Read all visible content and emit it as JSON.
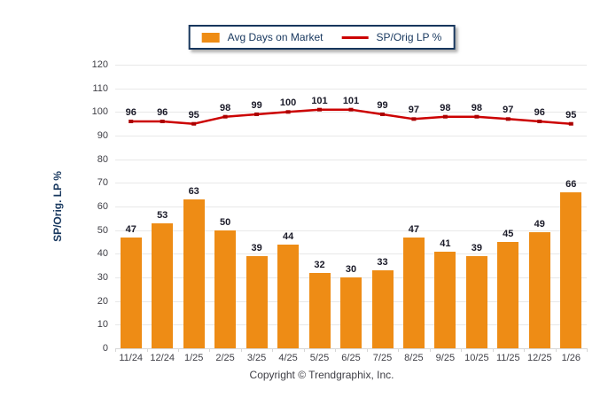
{
  "chart_data": {
    "type": "bar",
    "combo": "bar+line",
    "title": "",
    "categories": [
      "11/24",
      "12/24",
      "1/25",
      "2/25",
      "3/25",
      "4/25",
      "5/25",
      "6/25",
      "7/25",
      "8/25",
      "9/25",
      "10/25",
      "11/25",
      "12/25",
      "1/26"
    ],
    "series": [
      {
        "name": "Avg Days on Market",
        "type": "bar",
        "color": "#EE8C15",
        "values": [
          47,
          53,
          63,
          50,
          39,
          44,
          32,
          30,
          33,
          47,
          41,
          39,
          45,
          49,
          66
        ]
      },
      {
        "name": "SP/Orig LP %",
        "type": "line",
        "color": "#CC0000",
        "marker_color": "#AA0000",
        "values": [
          96,
          96,
          95,
          98,
          99,
          100,
          101,
          101,
          99,
          97,
          98,
          98,
          97,
          96,
          95
        ]
      }
    ],
    "xlabel": "",
    "ylabel": "SP/Orig. LP %",
    "ylim": [
      0,
      120
    ],
    "ytick_step": 10,
    "grid": true,
    "data_labels": true,
    "legend_position": "top-center"
  },
  "footer": {
    "copyright": "Copyright © Trendgraphix, Inc."
  },
  "colors": {
    "background": "#FFFFFF",
    "legend_border": "#17365D",
    "legend_text": "#17375E",
    "axis_text": "#3F3F46",
    "data_label_text": "#1A1A28",
    "gridline": "#E8E8E8",
    "baseline": "#D6D6D6"
  }
}
